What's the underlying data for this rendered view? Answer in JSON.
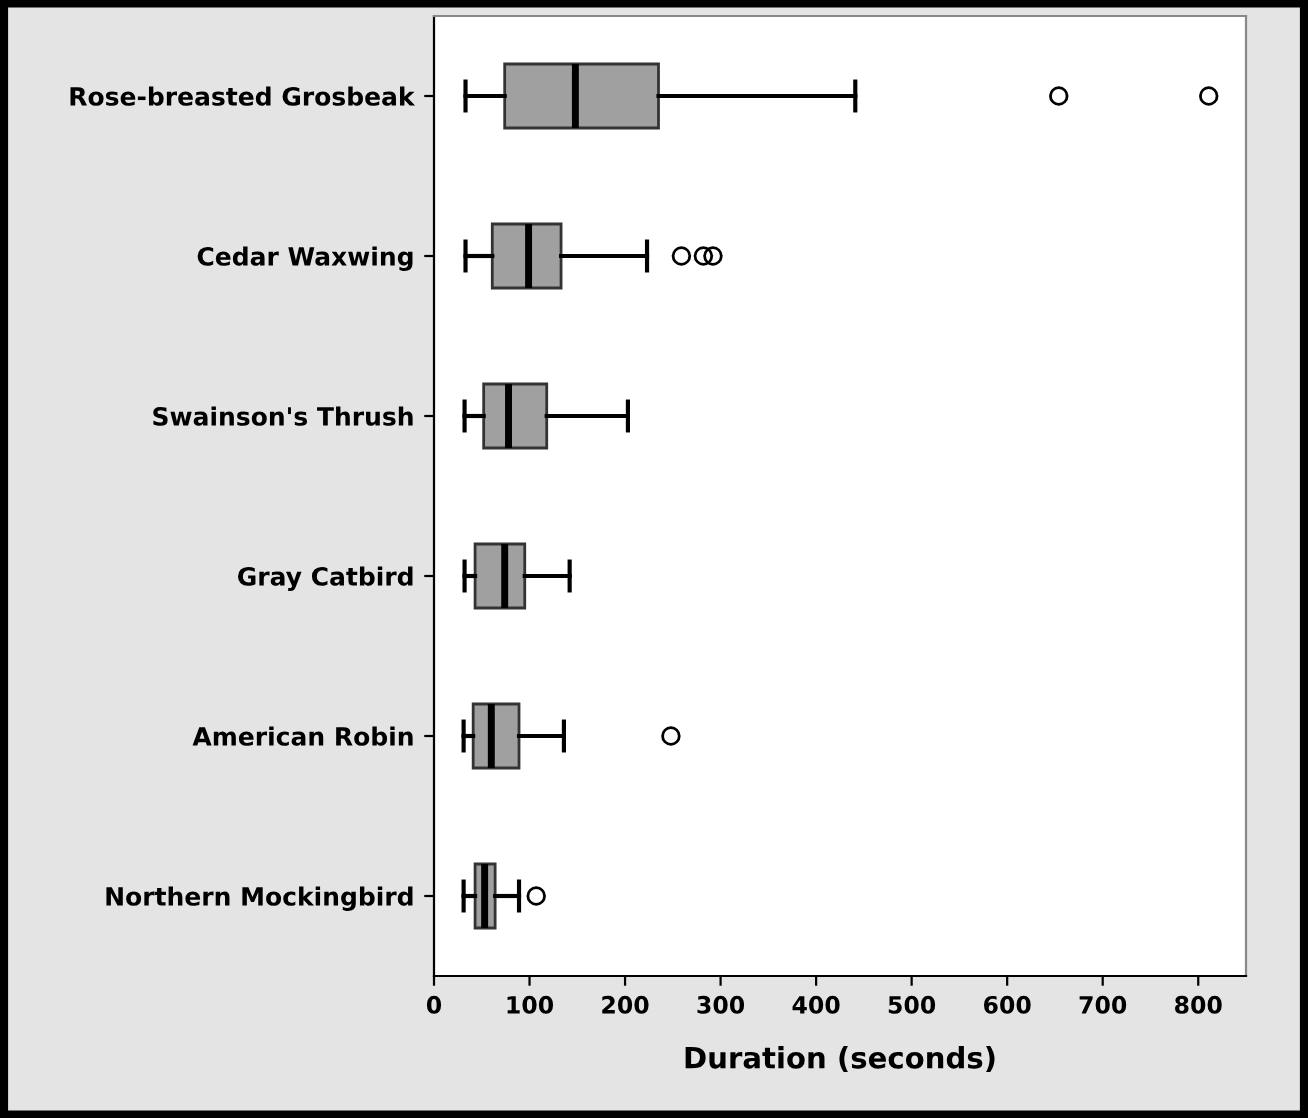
{
  "chart_data": {
    "type": "box",
    "orientation": "horizontal",
    "xlabel": "Duration (seconds)",
    "categories": [
      "Rose-breasted Grosbeak",
      "Cedar Waxwing",
      "Swainson's Thrush",
      "Gray Catbird",
      "American Robin",
      "Northern Mockingbird"
    ],
    "boxes": [
      {
        "low": 33,
        "q1": 74,
        "median": 148,
        "q3": 235,
        "high": 441,
        "outliers": [
          654,
          811
        ]
      },
      {
        "low": 33,
        "q1": 61,
        "median": 99,
        "q3": 133,
        "high": 223,
        "outliers": [
          259,
          282,
          292
        ]
      },
      {
        "low": 32,
        "q1": 52,
        "median": 78,
        "q3": 118,
        "high": 203
      },
      {
        "low": 32,
        "q1": 43,
        "median": 74,
        "q3": 95,
        "high": 142
      },
      {
        "low": 31,
        "q1": 41,
        "median": 60,
        "q3": 89,
        "high": 136,
        "outliers": [
          248
        ]
      },
      {
        "low": 31,
        "q1": 43,
        "median": 53,
        "q3": 64,
        "high": 89,
        "outliers": [
          107
        ]
      }
    ],
    "color": "#a0a0a0",
    "xlim": [
      0,
      850
    ],
    "xticks": [
      0,
      100,
      200,
      300,
      400,
      500,
      600,
      700,
      800
    ],
    "grid": false
  }
}
